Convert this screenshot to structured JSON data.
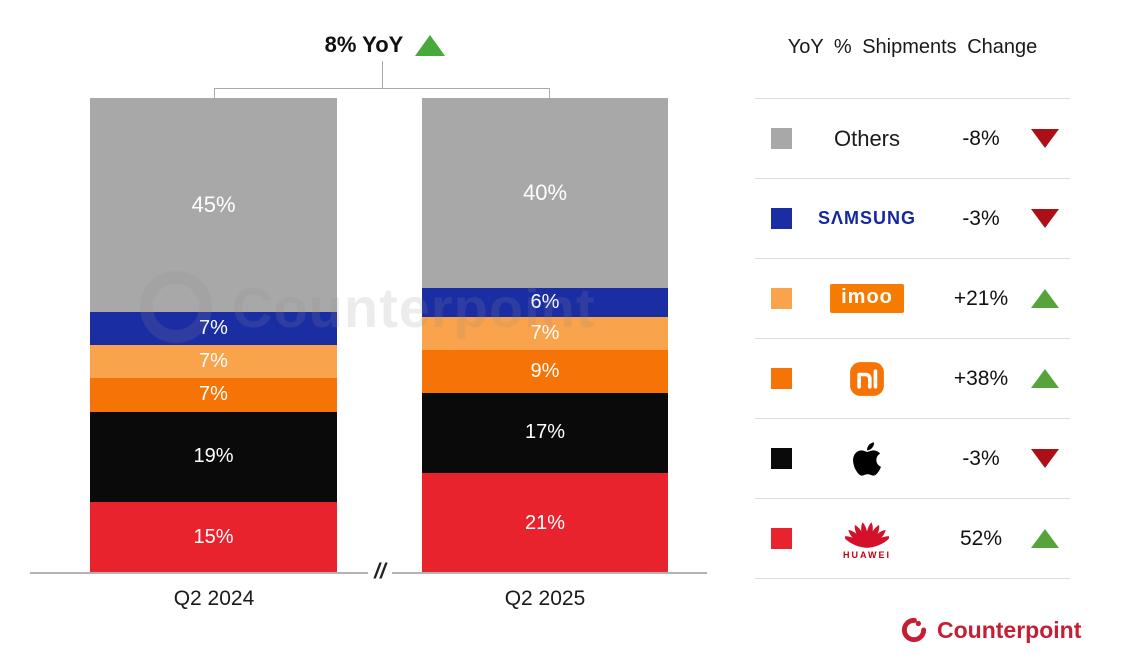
{
  "title": {
    "text": "8% YoY",
    "direction": "up"
  },
  "legend": {
    "header": "YoY % Shipments Change",
    "rows": [
      {
        "brand": "Others",
        "logo_type": "others",
        "change": "-8%",
        "direction": "down",
        "color": "#a8a8a8"
      },
      {
        "brand": "SAMSUNG",
        "logo_type": "samsung",
        "change": "-3%",
        "direction": "down",
        "color": "#1b2da3"
      },
      {
        "brand": "imoo",
        "logo_type": "imoo",
        "change": "+21%",
        "direction": "up",
        "color": "#f9a34c"
      },
      {
        "brand": "Xiaomi",
        "logo_type": "xiaomi",
        "change": "+38%",
        "direction": "up",
        "color": "#f67307"
      },
      {
        "brand": "Apple",
        "logo_type": "apple",
        "change": "-3%",
        "direction": "down",
        "color": "#0a0a0a"
      },
      {
        "brand": "HUAWEI",
        "logo_type": "huawei",
        "change": "52%",
        "direction": "up",
        "color": "#e8232e"
      }
    ]
  },
  "chart_data": {
    "type": "bar",
    "stacked": true,
    "title": "8% YoY",
    "categories": [
      "Q2 2024",
      "Q2 2025"
    ],
    "series": [
      {
        "name": "Others",
        "color": "#a8a8a8",
        "values": [
          45,
          40
        ],
        "yoy_change": "-8%"
      },
      {
        "name": "Samsung",
        "color": "#1b2da3",
        "values": [
          7,
          6
        ],
        "yoy_change": "-3%"
      },
      {
        "name": "imoo",
        "color": "#f9a34c",
        "values": [
          7,
          7
        ],
        "yoy_change": "+21%"
      },
      {
        "name": "Xiaomi",
        "color": "#f67307",
        "values": [
          7,
          9
        ],
        "yoy_change": "+38%"
      },
      {
        "name": "Apple",
        "color": "#0a0a0a",
        "values": [
          19,
          17
        ],
        "yoy_change": "-3%"
      },
      {
        "name": "Huawei",
        "color": "#e8232e",
        "values": [
          15,
          21
        ],
        "yoy_change": "52%"
      }
    ],
    "unit": "%",
    "ylim": [
      0,
      100
    ],
    "axis_break": "//",
    "legend_position": "right",
    "legend_title": "YoY % Shipments Change"
  },
  "watermark": "Counterpoint",
  "footer": {
    "brand": "Counterpoint"
  }
}
